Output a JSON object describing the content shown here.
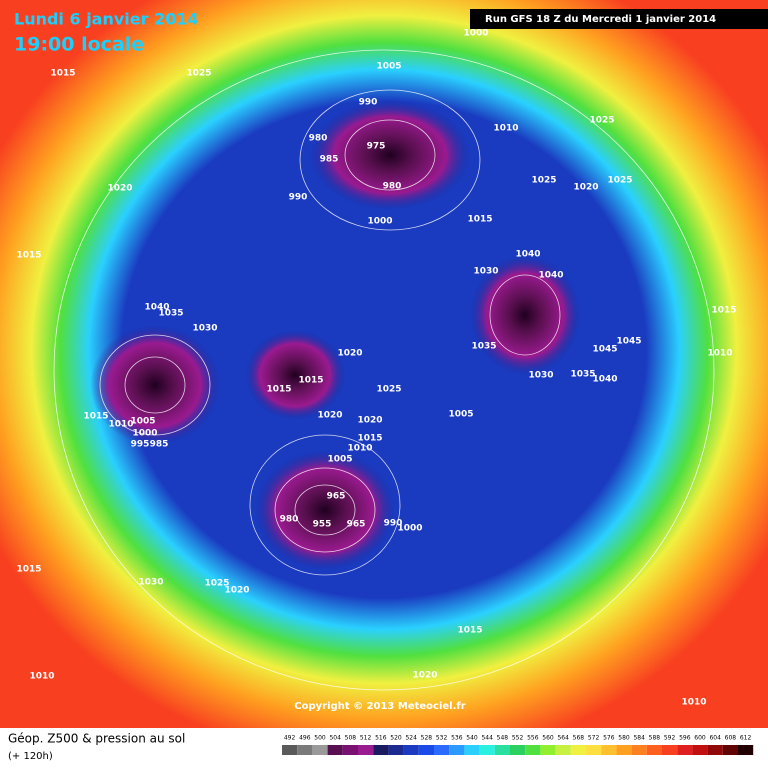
{
  "header": {
    "date": "Lundi 6 janvier 2014",
    "time": "19:00 locale",
    "run": "Run GFS 18 Z du Mercredi 1 janvier 2014"
  },
  "map": {
    "pressure_labels": [
      1000,
      1005,
      1015,
      1025,
      990,
      1010,
      1025,
      980,
      975,
      985,
      1025,
      1020,
      1025,
      990,
      980,
      1000,
      1015,
      1020,
      1015,
      1040,
      1040,
      1030,
      1040,
      1035,
      1030,
      1035,
      1045,
      1045,
      1015,
      1010,
      1020,
      1015,
      1015,
      1025,
      1030,
      1035,
      1040,
      1005,
      1020,
      1020,
      1015,
      1010,
      1005,
      1015,
      1005,
      1010,
      1000,
      995,
      985,
      965,
      980,
      955,
      965,
      990,
      1000,
      1015,
      1030,
      1025,
      1020,
      1015,
      1020,
      1010,
      1010
    ]
  },
  "footer": {
    "copyright": "Copyright © 2013 Meteociel.fr",
    "title": "Géop. Z500 & pression au sol",
    "forecast": "(+ 120h)"
  },
  "legend": {
    "values": [
      492,
      496,
      500,
      504,
      508,
      512,
      516,
      520,
      524,
      528,
      532,
      536,
      540,
      544,
      548,
      552,
      556,
      560,
      564,
      568,
      572,
      576,
      580,
      584,
      588,
      592,
      596,
      600,
      604,
      608,
      612
    ],
    "colors": [
      "#5a5a5a",
      "#7a7a7a",
      "#9a9a9a",
      "#5a1050",
      "#7a1070",
      "#9a1a90",
      "#1a1a60",
      "#1a2a90",
      "#1a3ac0",
      "#1a4ae8",
      "#2a6aff",
      "#2a9aff",
      "#2ad0ff",
      "#2af0e0",
      "#2ae0a0",
      "#2ad060",
      "#50e040",
      "#90f030",
      "#c8f040",
      "#f0f040",
      "#ffe040",
      "#ffc030",
      "#ffa020",
      "#ff8020",
      "#ff6020",
      "#f84020",
      "#e02020",
      "#c01010",
      "#900808",
      "#600404",
      "#200000"
    ]
  }
}
